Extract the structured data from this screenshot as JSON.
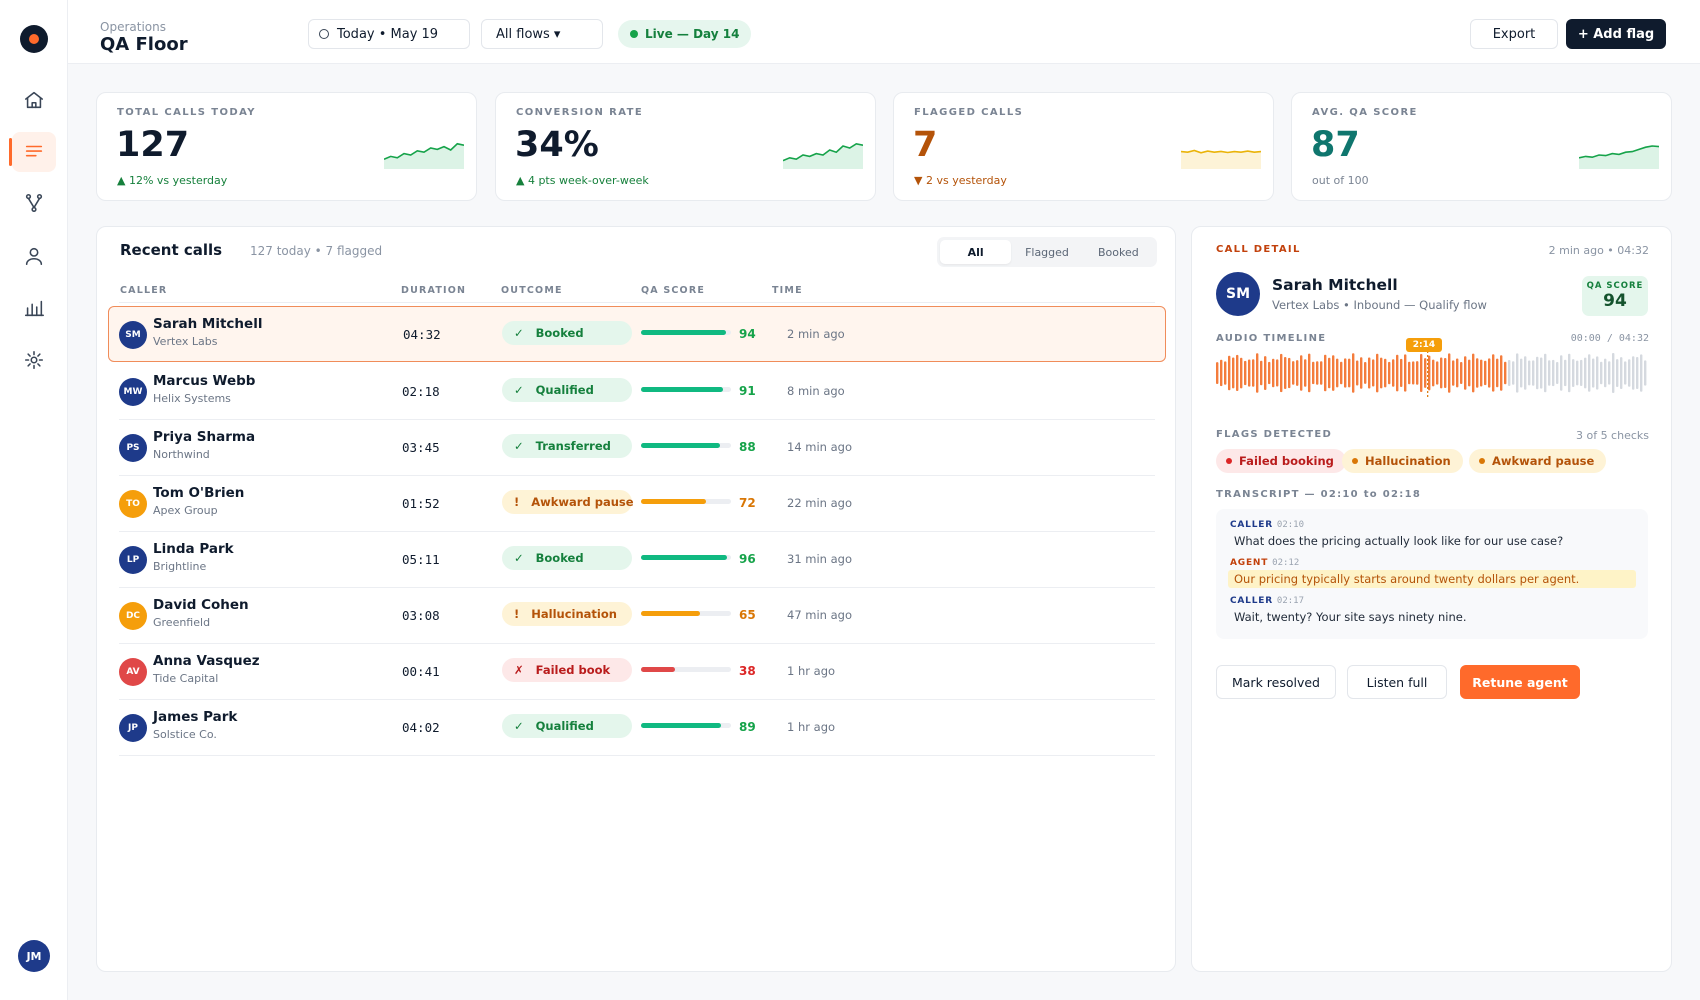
{
  "header": {
    "breadcrumb": "Operations",
    "title": "QA Floor",
    "date": "Today • May 19",
    "flows": "All flows ▾",
    "live": "Live — Day 14",
    "export": "Export",
    "add_flag": "+ Add flag"
  },
  "sidebar": {
    "items": [
      {
        "icon": "home-icon"
      },
      {
        "icon": "list-icon",
        "active": true
      },
      {
        "icon": "flow-icon"
      },
      {
        "icon": "user-icon"
      },
      {
        "icon": "bar-chart-icon"
      },
      {
        "icon": "settings-icon"
      }
    ],
    "user_initials": "JM"
  },
  "stats": [
    {
      "label": "TOTAL CALLS TODAY",
      "value": "127",
      "delta": "▲ 12% vs yesterday",
      "trend": "up",
      "spark": [
        0.35,
        0.45,
        0.4,
        0.55,
        0.5,
        0.65,
        0.6,
        0.75,
        0.7,
        0.8,
        0.68,
        0.9,
        0.85
      ],
      "spark_color": "#16a34a",
      "spark_fill": "#dcf3e6"
    },
    {
      "label": "CONVERSION RATE",
      "value": "34%",
      "delta": "▲ 4 pts week-over-week",
      "trend": "up",
      "spark": [
        0.3,
        0.4,
        0.35,
        0.5,
        0.45,
        0.55,
        0.5,
        0.68,
        0.6,
        0.82,
        0.75,
        0.9,
        0.85
      ],
      "spark_color": "#16a34a",
      "spark_fill": "#dcf3e6"
    },
    {
      "label": "FLAGGED CALLS",
      "value": "7",
      "delta": "▼ 2 vs yesterday",
      "trend": "down",
      "spark": [
        0.62,
        0.6,
        0.66,
        0.58,
        0.64,
        0.6,
        0.63,
        0.59,
        0.62,
        0.6,
        0.64,
        0.6,
        0.62
      ],
      "spark_color": "#eab308",
      "spark_fill": "#fdf3d7"
    },
    {
      "label": "AVG. QA SCORE",
      "value": "87",
      "delta": "out of 100",
      "trend": "flat",
      "spark": [
        0.4,
        0.45,
        0.42,
        0.5,
        0.48,
        0.55,
        0.52,
        0.6,
        0.62,
        0.7,
        0.78,
        0.82,
        0.8
      ],
      "spark_color": "#16a34a",
      "spark_fill": "#dcf3e6"
    }
  ],
  "calls": {
    "title": "Recent calls",
    "subtitle": "127 today • 7 flagged",
    "filters": [
      "All",
      "Flagged",
      "Booked"
    ],
    "active_filter": "All",
    "columns": [
      "CALLER",
      "DURATION",
      "OUTCOME",
      "QA SCORE",
      "TIME"
    ],
    "rows": [
      {
        "initials": "SM",
        "avatar_color": "#1e3a8a",
        "name": "Sarah Mitchell",
        "company": "Vertex Labs",
        "duration": "04:32",
        "outcome": "Booked",
        "outcome_icon": "✓",
        "status": "good",
        "score": 94,
        "time": "2 min ago",
        "selected": true
      },
      {
        "initials": "MW",
        "avatar_color": "#1e3a8a",
        "name": "Marcus Webb",
        "company": "Helix Systems",
        "duration": "02:18",
        "outcome": "Qualified",
        "outcome_icon": "✓",
        "status": "good",
        "score": 91,
        "time": "8 min ago"
      },
      {
        "initials": "PS",
        "avatar_color": "#1e3a8a",
        "name": "Priya Sharma",
        "company": "Northwind",
        "duration": "03:45",
        "outcome": "Transferred",
        "outcome_icon": "✓",
        "status": "good",
        "score": 88,
        "time": "14 min ago"
      },
      {
        "initials": "TO",
        "avatar_color": "#f59e0b",
        "name": "Tom O'Brien",
        "company": "Apex Group",
        "duration": "01:52",
        "outcome": "Awkward pause",
        "outcome_icon": "!",
        "status": "warn",
        "score": 72,
        "time": "22 min ago"
      },
      {
        "initials": "LP",
        "avatar_color": "#1e3a8a",
        "name": "Linda Park",
        "company": "Brightline",
        "duration": "05:11",
        "outcome": "Booked",
        "outcome_icon": "✓",
        "status": "good",
        "score": 96,
        "time": "31 min ago"
      },
      {
        "initials": "DC",
        "avatar_color": "#f59e0b",
        "name": "David Cohen",
        "company": "Greenfield",
        "duration": "03:08",
        "outcome": "Hallucination",
        "outcome_icon": "!",
        "status": "warn",
        "score": 65,
        "time": "47 min ago"
      },
      {
        "initials": "AV",
        "avatar_color": "#e04848",
        "name": "Anna Vasquez",
        "company": "Tide Capital",
        "duration": "00:41",
        "outcome": "Failed book",
        "outcome_icon": "✗",
        "status": "bad",
        "score": 38,
        "time": "1 hr ago"
      },
      {
        "initials": "JP",
        "avatar_color": "#1e3a8a",
        "name": "James Park",
        "company": "Solstice Co.",
        "duration": "04:02",
        "outcome": "Qualified",
        "outcome_icon": "✓",
        "status": "good",
        "score": 89,
        "time": "1 hr ago"
      }
    ]
  },
  "detail": {
    "label": "CALL DETAIL",
    "meta": "2 min ago • 04:32",
    "initials": "SM",
    "name": "Sarah Mitchell",
    "subtitle": "Vertex Labs • Inbound — Qualify flow",
    "qa_label": "QA SCORE",
    "qa_value": "94",
    "audio_label": "AUDIO TIMELINE",
    "audio_range": "00:00 / 04:32",
    "playhead": "2:14",
    "playhead_fraction": 0.49,
    "flags_label": "FLAGS DETECTED",
    "flags_count": "3 of 5 checks",
    "flags": [
      {
        "label": "Failed booking",
        "status": "bad"
      },
      {
        "label": "Hallucination",
        "status": "warn"
      },
      {
        "label": "Awkward pause",
        "status": "warn"
      }
    ],
    "transcript_label": "TRANSCRIPT — 02:10 to 02:18",
    "transcript": [
      {
        "speaker": "CALLER",
        "time": "02:10",
        "text": "What does the pricing actually look like for our use case?",
        "role": "caller"
      },
      {
        "speaker": "AGENT",
        "time": "02:12",
        "text": "Our pricing typically starts around twenty dollars per agent.",
        "role": "agent",
        "highlight": true
      },
      {
        "speaker": "CALLER",
        "time": "02:17",
        "text": "Wait, twenty? Your site says ninety nine.",
        "role": "caller"
      }
    ],
    "actions": {
      "resolve": "Mark resolved",
      "listen": "Listen full",
      "retune": "Retune agent"
    }
  },
  "colors": {
    "accent": "#ff6a2b",
    "good": "#16a34a",
    "warn": "#f59e0b",
    "bad": "#dc2626",
    "navy": "#0f1b2d"
  }
}
